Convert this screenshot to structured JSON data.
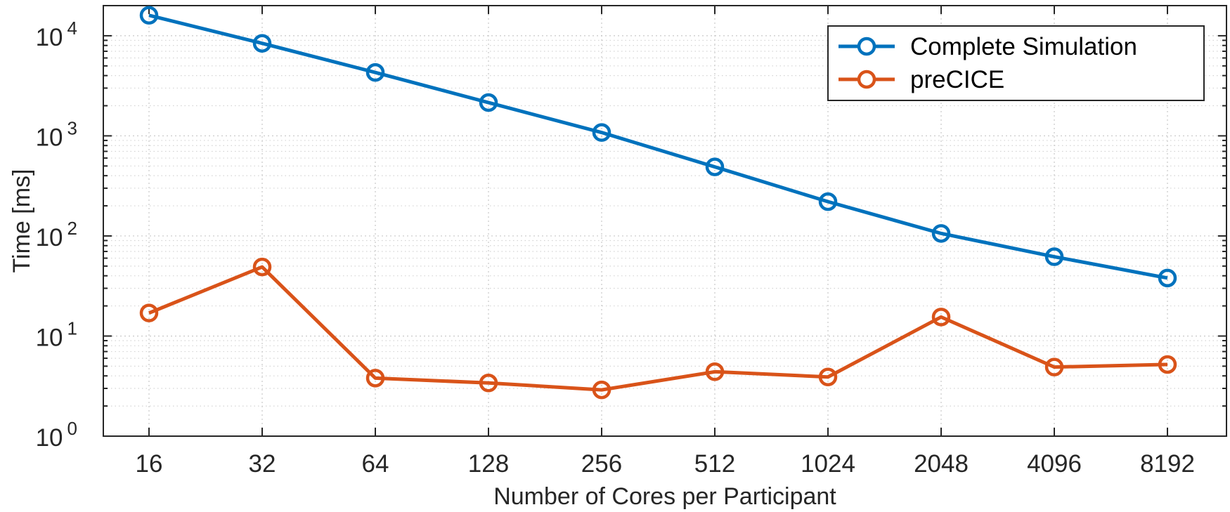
{
  "chart_data": {
    "type": "line",
    "title": "",
    "xlabel": "Number of Cores per Participant",
    "ylabel": "Time [ms]",
    "yscale": "log",
    "ylim": [
      1,
      20000
    ],
    "grid": true,
    "legend_position": "top-right",
    "categories": [
      "16",
      "32",
      "64",
      "128",
      "256",
      "512",
      "1024",
      "2048",
      "4096",
      "8192"
    ],
    "y_ticks": [
      {
        "value": 1,
        "base": "10",
        "exp": "0"
      },
      {
        "value": 10,
        "base": "10",
        "exp": "1"
      },
      {
        "value": 100,
        "base": "10",
        "exp": "2"
      },
      {
        "value": 1000,
        "base": "10",
        "exp": "3"
      },
      {
        "value": 10000,
        "base": "10",
        "exp": "4"
      }
    ],
    "series": [
      {
        "name": "Complete Simulation",
        "color": "#0072BD",
        "values": [
          16000,
          8400,
          4300,
          2150,
          1080,
          490,
          220,
          106,
          62,
          38
        ]
      },
      {
        "name": "preCICE",
        "color": "#D95319",
        "values": [
          17,
          49,
          3.8,
          3.4,
          2.9,
          4.4,
          3.9,
          15.5,
          4.9,
          5.2
        ]
      }
    ]
  }
}
